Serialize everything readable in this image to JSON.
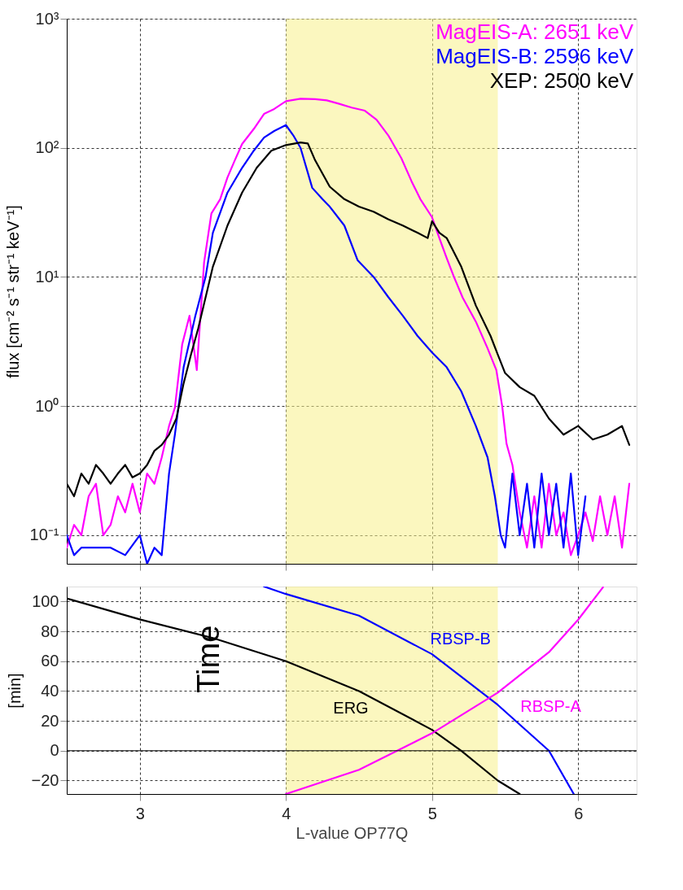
{
  "chart_data": [
    {
      "type": "line",
      "ylabel": "flux  [cm⁻² s⁻¹ str⁻¹ keV⁻¹]",
      "log": true,
      "xlim": [
        2.5,
        6.4
      ],
      "xticks": [
        3,
        4,
        5,
        6
      ],
      "ylim": [
        0.06,
        1000
      ],
      "yticks": [
        {
          "value": 0.1,
          "label": "10⁻¹"
        },
        {
          "value": 1,
          "label": "10⁰"
        },
        {
          "value": 10,
          "label": "10¹"
        },
        {
          "value": 100,
          "label": "10²"
        },
        {
          "value": 1000,
          "label": "10³"
        }
      ],
      "tick_labels": "y",
      "grid": true,
      "legend": "top right",
      "bands": [
        {
          "axis": "x",
          "from": 4.0,
          "to": 5.45,
          "color": "#f7f08a"
        }
      ],
      "series": [
        {
          "name": "MagEIS-A: 2651 keV",
          "color": "#ff00ff",
          "x": [
            2.5,
            2.55,
            2.6,
            2.65,
            2.7,
            2.75,
            2.8,
            2.85,
            2.9,
            2.95,
            3.0,
            3.05,
            3.1,
            3.15,
            3.2,
            3.24,
            3.29,
            3.34,
            3.39,
            3.44,
            3.49,
            3.55,
            3.6,
            3.65,
            3.7,
            3.78,
            3.85,
            3.92,
            4.0,
            4.1,
            4.2,
            4.28,
            4.36,
            4.45,
            4.54,
            4.62,
            4.7,
            4.79,
            4.86,
            4.92,
            5.0,
            5.05,
            5.1,
            5.15,
            5.21,
            5.3,
            5.38,
            5.44,
            5.48,
            5.51,
            5.55,
            5.6,
            5.65,
            5.7,
            5.75,
            5.8,
            5.85,
            5.9,
            5.95,
            6.0,
            6.05,
            6.1,
            6.15,
            6.2,
            6.25,
            6.3,
            6.35
          ],
          "values": [
            0.08,
            0.12,
            0.1,
            0.2,
            0.25,
            0.1,
            0.12,
            0.2,
            0.15,
            0.25,
            0.15,
            0.3,
            0.25,
            0.4,
            0.7,
            0.97,
            3,
            5,
            1.9,
            13,
            31,
            40,
            59,
            80,
            107,
            140,
            183,
            200,
            230,
            240,
            238,
            233,
            220,
            205,
            194,
            165,
            125,
            83,
            55,
            40,
            29,
            20,
            14,
            10,
            6.9,
            4.5,
            2.8,
            1.9,
            1.0,
            0.51,
            0.35,
            0.15,
            0.08,
            0.2,
            0.08,
            0.25,
            0.1,
            0.15,
            0.07,
            0.1,
            0.15,
            0.09,
            0.2,
            0.1,
            0.2,
            0.08,
            0.25
          ]
        },
        {
          "name": "MagEIS-B: 2596 keV",
          "color": "#0000ff",
          "x": [
            2.5,
            2.55,
            2.6,
            2.7,
            2.8,
            2.9,
            3.0,
            3.05,
            3.1,
            3.15,
            3.2,
            3.24,
            3.3,
            3.38,
            3.45,
            3.5,
            3.6,
            3.7,
            3.78,
            3.85,
            3.92,
            4.0,
            4.05,
            4.1,
            4.18,
            4.25,
            4.3,
            4.4,
            4.49,
            4.6,
            4.7,
            4.8,
            4.9,
            5.0,
            5.1,
            5.2,
            5.3,
            5.38,
            5.43,
            5.47,
            5.5,
            5.55,
            5.6,
            5.65,
            5.7,
            5.75,
            5.8,
            5.85,
            5.9,
            5.95,
            6.0,
            6.05
          ],
          "values": [
            0.1,
            0.07,
            0.08,
            null,
            0.08,
            0.07,
            0.1,
            0.06,
            0.08,
            0.07,
            0.3,
            0.6,
            2,
            5,
            10,
            22,
            45,
            70,
            95,
            120,
            135,
            150,
            125,
            100,
            49,
            40,
            35,
            25,
            13.5,
            10,
            7,
            5,
            3.5,
            2.6,
            2,
            1.3,
            0.7,
            0.4,
            0.2,
            0.1,
            0.08,
            0.3,
            0.1,
            0.25,
            0.08,
            0.3,
            0.1,
            0.25,
            0.08,
            0.3,
            0.07,
            0.2
          ]
        },
        {
          "name": "XEP: 2500 keV",
          "color": "#000000",
          "x": [
            2.5,
            2.55,
            2.6,
            2.65,
            2.7,
            2.75,
            2.8,
            2.85,
            2.9,
            2.95,
            3.0,
            3.05,
            3.1,
            3.15,
            3.2,
            3.25,
            3.3,
            3.35,
            3.4,
            3.5,
            3.6,
            3.7,
            3.8,
            3.9,
            4.0,
            4.1,
            4.15,
            4.2,
            4.3,
            4.4,
            4.5,
            4.6,
            4.7,
            4.8,
            4.9,
            4.97,
            5.0,
            5.05,
            5.1,
            5.2,
            5.3,
            5.4,
            5.45,
            5.5,
            5.6,
            5.7,
            5.8,
            5.9,
            6.0,
            6.1,
            6.2,
            6.3,
            6.35
          ],
          "values": [
            0.25,
            0.2,
            0.3,
            0.25,
            0.35,
            0.3,
            0.25,
            0.3,
            0.35,
            0.28,
            0.3,
            0.35,
            0.45,
            0.5,
            0.6,
            0.8,
            1.5,
            2.5,
            4,
            12,
            25,
            45,
            70,
            95,
            105,
            110,
            108,
            80,
            50,
            40,
            35,
            32,
            28,
            25,
            22,
            20,
            27,
            22,
            20,
            12,
            6,
            3.5,
            2.5,
            1.8,
            1.4,
            1.2,
            0.8,
            0.6,
            0.7,
            0.55,
            0.6,
            0.7,
            0.5
          ]
        }
      ]
    },
    {
      "type": "line",
      "xlabel": "L-value OP77Q",
      "ylabel": "[min]",
      "xlim": [
        2.5,
        6.4
      ],
      "xticks": [
        3,
        4,
        5,
        6
      ],
      "ylim": [
        -29,
        110
      ],
      "yticks": [
        -20,
        0,
        20,
        40,
        60,
        80,
        100
      ],
      "grid": true,
      "bands": [
        {
          "axis": "x",
          "from": 4.0,
          "to": 5.45,
          "color": "#f7f08a"
        }
      ],
      "ref_lines": [
        {
          "axis": "y",
          "value": 0,
          "color": "#000000"
        }
      ],
      "annotations": [
        "Time"
      ],
      "series": [
        {
          "name": "ERG",
          "color": "#000000",
          "x": [
            2.5,
            3.0,
            3.5,
            4.0,
            4.5,
            5.0,
            5.2,
            5.45,
            5.6
          ],
          "values": [
            102,
            88,
            75.5,
            60,
            40,
            14,
            0,
            -20,
            -29
          ]
        },
        {
          "name": "RBSP-B",
          "color": "#0000ff",
          "x": [
            3.85,
            4.0,
            4.5,
            5.0,
            5.45,
            5.8,
            5.97
          ],
          "values": [
            110,
            105,
            90.5,
            64.7,
            30.7,
            0,
            -29
          ]
        },
        {
          "name": "RBSP-A",
          "color": "#ff00ff",
          "x": [
            4.0,
            4.5,
            5.0,
            5.45,
            5.8,
            6.0,
            6.17
          ],
          "values": [
            -29,
            -12.8,
            11.7,
            38.9,
            66,
            87.8,
            109.5
          ]
        }
      ]
    }
  ]
}
